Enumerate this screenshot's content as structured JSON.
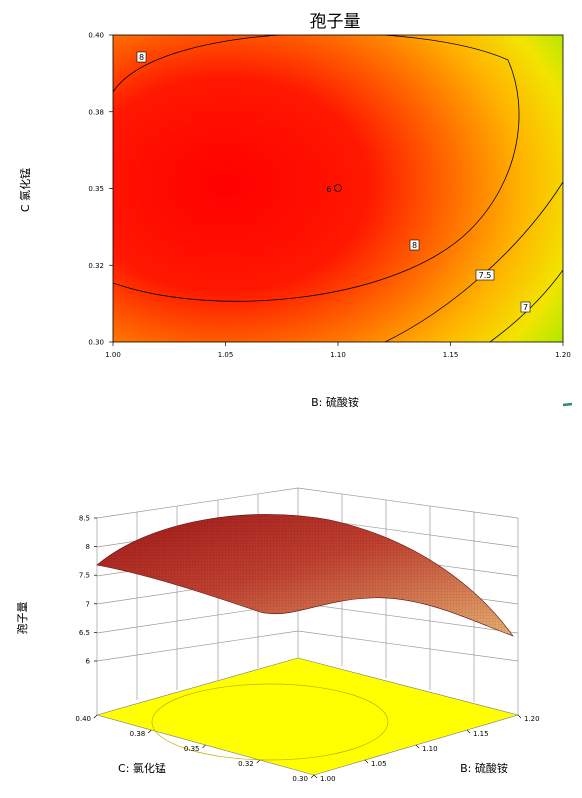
{
  "chart_data": [
    {
      "type": "contour",
      "title": "孢子量",
      "xlabel": "B: 硫酸铵",
      "ylabel": "C 氯化锰",
      "xlim": [
        1.0,
        1.2
      ],
      "ylim": [
        0.3,
        0.4
      ],
      "x_ticks": [
        "1.00",
        "1.05",
        "1.10",
        "1.15",
        "1.20"
      ],
      "y_ticks": [
        "0.30",
        "0.32",
        "0.35",
        "0.38",
        "0.40"
      ],
      "surface_peak": {
        "x": 1.05,
        "y": 0.355,
        "z": 8.37
      },
      "contour_levels": [
        {
          "label": "8",
          "value": 8.0
        },
        {
          "label": "8",
          "value": 8.0
        },
        {
          "label": "7.5",
          "value": 7.5
        },
        {
          "label": "7",
          "value": 7.0
        }
      ],
      "design_point": {
        "label": "6",
        "x": 1.1,
        "y": 0.35
      },
      "colors": {
        "high": "#ff0000",
        "mid": "#ff9a00",
        "low": "#ffff00",
        "lowest": "#00e000",
        "contour": "#000000"
      }
    },
    {
      "type": "surface3d",
      "zlabel": "孢子量",
      "xlabel": "C: 氯化锰",
      "ylabel": "B: 硫酸铵",
      "zlim": [
        6,
        8.5
      ],
      "z_ticks": [
        "6",
        "6.5",
        "7",
        "7.5",
        "8",
        "8.5"
      ],
      "c_ticks": [
        "0.30",
        "0.32",
        "0.35",
        "0.38",
        "0.40"
      ],
      "b_ticks": [
        "1.00",
        "1.05",
        "1.10",
        "1.15",
        "1.20"
      ],
      "colors": {
        "surface_high": "#b22424",
        "surface_low": "#e0a860",
        "floor": "#ffff00"
      }
    }
  ]
}
